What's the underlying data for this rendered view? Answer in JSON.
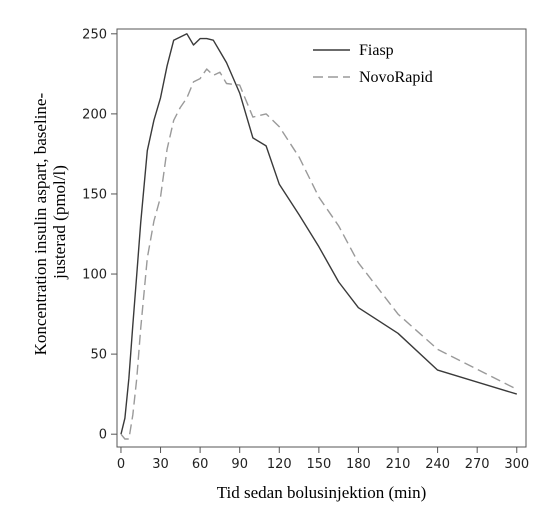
{
  "chart_data": {
    "type": "line",
    "title": "",
    "xlabel": "Tid sedan bolusinjektion (min)",
    "ylabel_lines": [
      "Koncentration insulin aspart, baseline-",
      "justerad (pmol/l)"
    ],
    "xlim": [
      -3,
      307
    ],
    "ylim": [
      -8,
      253
    ],
    "xticks": [
      0,
      30,
      60,
      90,
      120,
      150,
      180,
      210,
      240,
      270,
      300
    ],
    "yticks": [
      0,
      50,
      100,
      150,
      200,
      250
    ],
    "grid": false,
    "legend_position": "top-right",
    "series": [
      {
        "name": "Fiasp",
        "color": "#3a3a3a",
        "style": "solid",
        "points": [
          [
            0,
            0
          ],
          [
            3,
            10
          ],
          [
            6,
            35
          ],
          [
            9,
            68
          ],
          [
            12,
            100
          ],
          [
            15,
            132
          ],
          [
            20,
            177
          ],
          [
            25,
            196
          ],
          [
            30,
            210
          ],
          [
            35,
            230
          ],
          [
            40,
            246
          ],
          [
            45,
            248
          ],
          [
            50,
            250
          ],
          [
            55,
            243
          ],
          [
            60,
            247
          ],
          [
            65,
            247
          ],
          [
            70,
            246
          ],
          [
            75,
            239
          ],
          [
            80,
            232
          ],
          [
            90,
            213
          ],
          [
            100,
            185
          ],
          [
            110,
            180
          ],
          [
            120,
            156
          ],
          [
            135,
            137
          ],
          [
            150,
            117
          ],
          [
            165,
            95
          ],
          [
            180,
            79
          ],
          [
            210,
            63
          ],
          [
            240,
            40
          ],
          [
            300,
            25
          ]
        ]
      },
      {
        "name": "NovoRapid",
        "color": "#9a9a9a",
        "style": "dashed",
        "points": [
          [
            0,
            0
          ],
          [
            3,
            -3
          ],
          [
            6,
            -3
          ],
          [
            9,
            12
          ],
          [
            12,
            35
          ],
          [
            15,
            66
          ],
          [
            20,
            110
          ],
          [
            25,
            133
          ],
          [
            30,
            148
          ],
          [
            35,
            178
          ],
          [
            40,
            196
          ],
          [
            45,
            204
          ],
          [
            50,
            210
          ],
          [
            55,
            220
          ],
          [
            60,
            222
          ],
          [
            65,
            228
          ],
          [
            70,
            224
          ],
          [
            75,
            226
          ],
          [
            80,
            219
          ],
          [
            90,
            218
          ],
          [
            100,
            198
          ],
          [
            110,
            200
          ],
          [
            120,
            192
          ],
          [
            135,
            173
          ],
          [
            150,
            148
          ],
          [
            165,
            130
          ],
          [
            180,
            107
          ],
          [
            210,
            75
          ],
          [
            240,
            53
          ],
          [
            300,
            28
          ]
        ]
      }
    ]
  }
}
